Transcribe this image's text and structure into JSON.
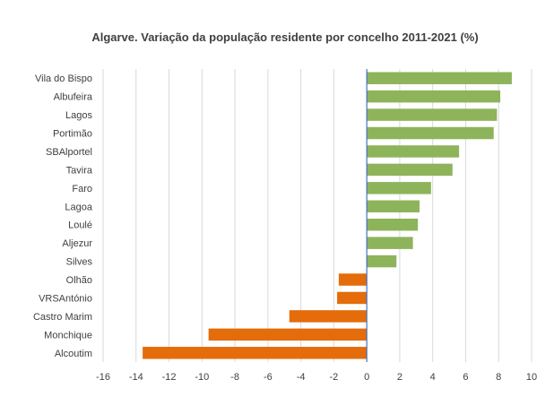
{
  "chart_data": {
    "type": "bar",
    "orientation": "horizontal",
    "title": "Algarve. Variação da população residente por concelho 2011-2021 (%)",
    "xlabel": "",
    "ylabel": "",
    "categories": [
      "Vila do Bispo",
      "Albufeira",
      "Lagos",
      "Portimão",
      "SBAlportel",
      "Tavira",
      "Faro",
      "Lagoa",
      "Loulé",
      "Aljezur",
      "Silves",
      "Olhão",
      "VRSAntónio",
      "Castro Marim",
      "Monchique",
      "Alcoutim"
    ],
    "values": [
      8.8,
      8.1,
      7.9,
      7.7,
      5.6,
      5.2,
      3.9,
      3.2,
      3.1,
      2.8,
      1.8,
      -1.7,
      -1.8,
      -4.7,
      -9.6,
      -13.6
    ],
    "xlim": [
      -16,
      10
    ],
    "xticks": [
      -16,
      -14,
      -12,
      -10,
      -8,
      -6,
      -4,
      -2,
      0,
      2,
      4,
      6,
      8,
      10
    ],
    "grid": true,
    "legend": "none",
    "colors": {
      "positive": "#8db45a",
      "negative": "#e46c0a",
      "zero_axis": "#4472c4",
      "grid": "#d9d9d9",
      "text": "#404040"
    }
  }
}
